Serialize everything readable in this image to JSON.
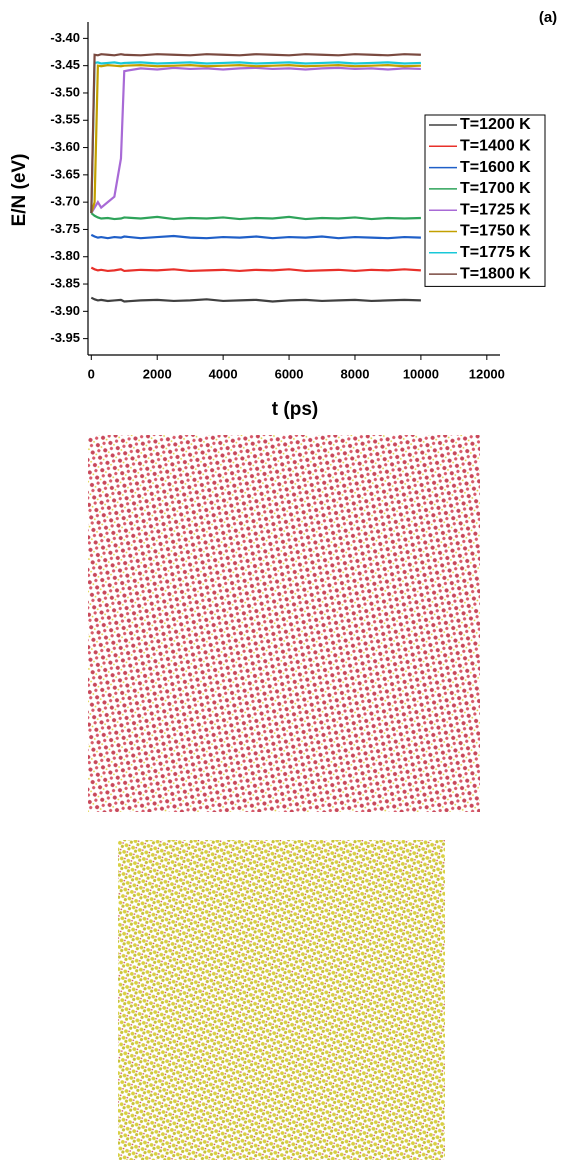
{
  "chart_data": {
    "type": "line",
    "panel_label": "(a)",
    "x_label": "t (ps)",
    "y_label": "E/N (eV)",
    "xlim": [
      -100,
      12400
    ],
    "ylim": [
      -3.98,
      -3.37
    ],
    "xticks": [
      0,
      2000,
      4000,
      6000,
      8000,
      10000,
      12000
    ],
    "yticks": [
      {
        "value": -3.4,
        "label": "-3.40"
      },
      {
        "value": -3.45,
        "label": "-3.45"
      },
      {
        "value": -3.5,
        "label": "-3.50"
      },
      {
        "value": -3.55,
        "label": "-3.55"
      },
      {
        "value": -3.6,
        "label": "-3.60"
      },
      {
        "value": -3.65,
        "label": "-3.65"
      },
      {
        "value": -3.7,
        "label": "-3.70"
      },
      {
        "value": -3.75,
        "label": "-3.75"
      },
      {
        "value": -3.8,
        "label": "-3.80"
      },
      {
        "value": -3.85,
        "label": "-3.85"
      },
      {
        "value": -3.9,
        "label": "-3.90"
      },
      {
        "value": -3.95,
        "label": "-3.95"
      }
    ],
    "x": [
      0,
      100,
      200,
      300,
      500,
      700,
      900,
      1000,
      1500,
      2000,
      2500,
      3000,
      3500,
      4000,
      4500,
      5000,
      5500,
      6000,
      6500,
      7000,
      7500,
      8000,
      8500,
      9000,
      9500,
      10000
    ],
    "series": [
      {
        "name": "T=1200 K",
        "color": "#404040",
        "values": [
          -3.875,
          -3.878,
          -3.88,
          -3.879,
          -3.881,
          -3.88,
          -3.879,
          -3.882,
          -3.88,
          -3.879,
          -3.881,
          -3.88,
          -3.878,
          -3.881,
          -3.88,
          -3.879,
          -3.882,
          -3.88,
          -3.879,
          -3.881,
          -3.88,
          -3.879,
          -3.881,
          -3.88,
          -3.879,
          -3.88
        ]
      },
      {
        "name": "T=1400 K",
        "color": "#e8302a",
        "values": [
          -3.82,
          -3.823,
          -3.825,
          -3.824,
          -3.826,
          -3.825,
          -3.823,
          -3.826,
          -3.824,
          -3.825,
          -3.823,
          -3.826,
          -3.825,
          -3.824,
          -3.826,
          -3.824,
          -3.825,
          -3.823,
          -3.826,
          -3.825,
          -3.824,
          -3.826,
          -3.824,
          -3.825,
          -3.823,
          -3.825
        ]
      },
      {
        "name": "T=1600 K",
        "color": "#1f5fc8",
        "values": [
          -3.76,
          -3.763,
          -3.765,
          -3.764,
          -3.766,
          -3.764,
          -3.765,
          -3.763,
          -3.766,
          -3.764,
          -3.762,
          -3.765,
          -3.766,
          -3.764,
          -3.765,
          -3.763,
          -3.766,
          -3.764,
          -3.765,
          -3.763,
          -3.766,
          -3.764,
          -3.765,
          -3.766,
          -3.764,
          -3.765
        ]
      },
      {
        "name": "T=1700 K",
        "color": "#2ea35a",
        "values": [
          -3.72,
          -3.725,
          -3.728,
          -3.73,
          -3.729,
          -3.731,
          -3.73,
          -3.728,
          -3.73,
          -3.727,
          -3.731,
          -3.729,
          -3.73,
          -3.728,
          -3.731,
          -3.729,
          -3.73,
          -3.727,
          -3.731,
          -3.729,
          -3.73,
          -3.728,
          -3.731,
          -3.729,
          -3.73,
          -3.729
        ]
      },
      {
        "name": "T=1725 K",
        "color": "#a86ad6",
        "values": [
          -3.72,
          -3.71,
          -3.7,
          -3.71,
          -3.7,
          -3.69,
          -3.62,
          -3.46,
          -3.455,
          -3.457,
          -3.454,
          -3.456,
          -3.455,
          -3.457,
          -3.455,
          -3.454,
          -3.456,
          -3.455,
          -3.457,
          -3.455,
          -3.454,
          -3.456,
          -3.455,
          -3.457,
          -3.455,
          -3.456
        ]
      },
      {
        "name": "T=1750 K",
        "color": "#c2a000",
        "values": [
          -3.72,
          -3.7,
          -3.45,
          -3.451,
          -3.449,
          -3.45,
          -3.451,
          -3.45,
          -3.449,
          -3.451,
          -3.45,
          -3.449,
          -3.451,
          -3.45,
          -3.449,
          -3.451,
          -3.45,
          -3.449,
          -3.451,
          -3.45,
          -3.449,
          -3.451,
          -3.45,
          -3.449,
          -3.451,
          -3.45
        ]
      },
      {
        "name": "T=1775 K",
        "color": "#19c8d8",
        "values": [
          -3.72,
          -3.445,
          -3.444,
          -3.446,
          -3.445,
          -3.444,
          -3.446,
          -3.445,
          -3.444,
          -3.446,
          -3.445,
          -3.444,
          -3.446,
          -3.445,
          -3.444,
          -3.446,
          -3.445,
          -3.444,
          -3.446,
          -3.445,
          -3.444,
          -3.446,
          -3.445,
          -3.444,
          -3.446,
          -3.445
        ]
      },
      {
        "name": "T=1800 K",
        "color": "#7a4a40",
        "values": [
          -3.72,
          -3.43,
          -3.431,
          -3.429,
          -3.43,
          -3.431,
          -3.429,
          -3.43,
          -3.431,
          -3.429,
          -3.43,
          -3.431,
          -3.429,
          -3.43,
          -3.431,
          -3.429,
          -3.43,
          -3.431,
          -3.429,
          -3.43,
          -3.431,
          -3.429,
          -3.43,
          -3.431,
          -3.429,
          -3.43
        ]
      }
    ]
  }
}
